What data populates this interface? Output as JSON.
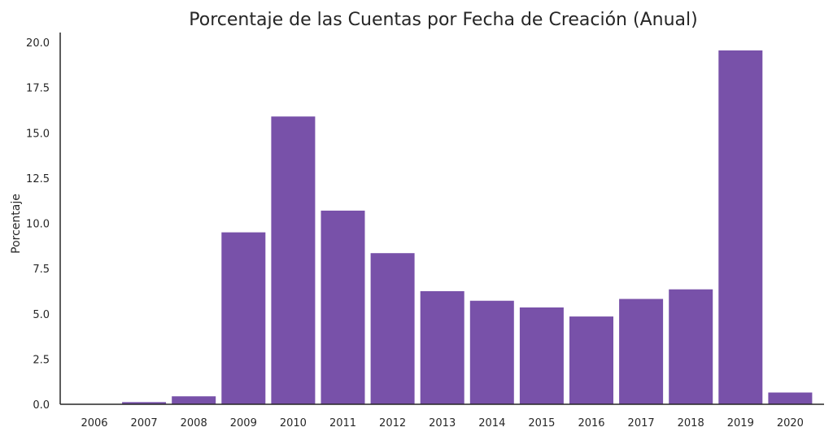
{
  "chart_data": {
    "type": "bar",
    "title": "Porcentaje de las Cuentas por Fecha de Creación (Anual)",
    "xlabel": "",
    "ylabel": "Porcentaje",
    "categories": [
      "2006",
      "2007",
      "2008",
      "2009",
      "2010",
      "2011",
      "2012",
      "2013",
      "2014",
      "2015",
      "2016",
      "2017",
      "2018",
      "2019",
      "2020"
    ],
    "values": [
      0.02,
      0.12,
      0.44,
      9.5,
      15.9,
      10.7,
      8.35,
      6.25,
      5.72,
      5.35,
      4.85,
      5.82,
      6.35,
      19.55,
      0.65
    ],
    "ylim": [
      0,
      20
    ],
    "yticks": [
      "0.0",
      "2.5",
      "5.0",
      "7.5",
      "10.0",
      "12.5",
      "15.0",
      "17.5",
      "20.0"
    ],
    "grid": false,
    "bar_color": "#7851a9"
  }
}
